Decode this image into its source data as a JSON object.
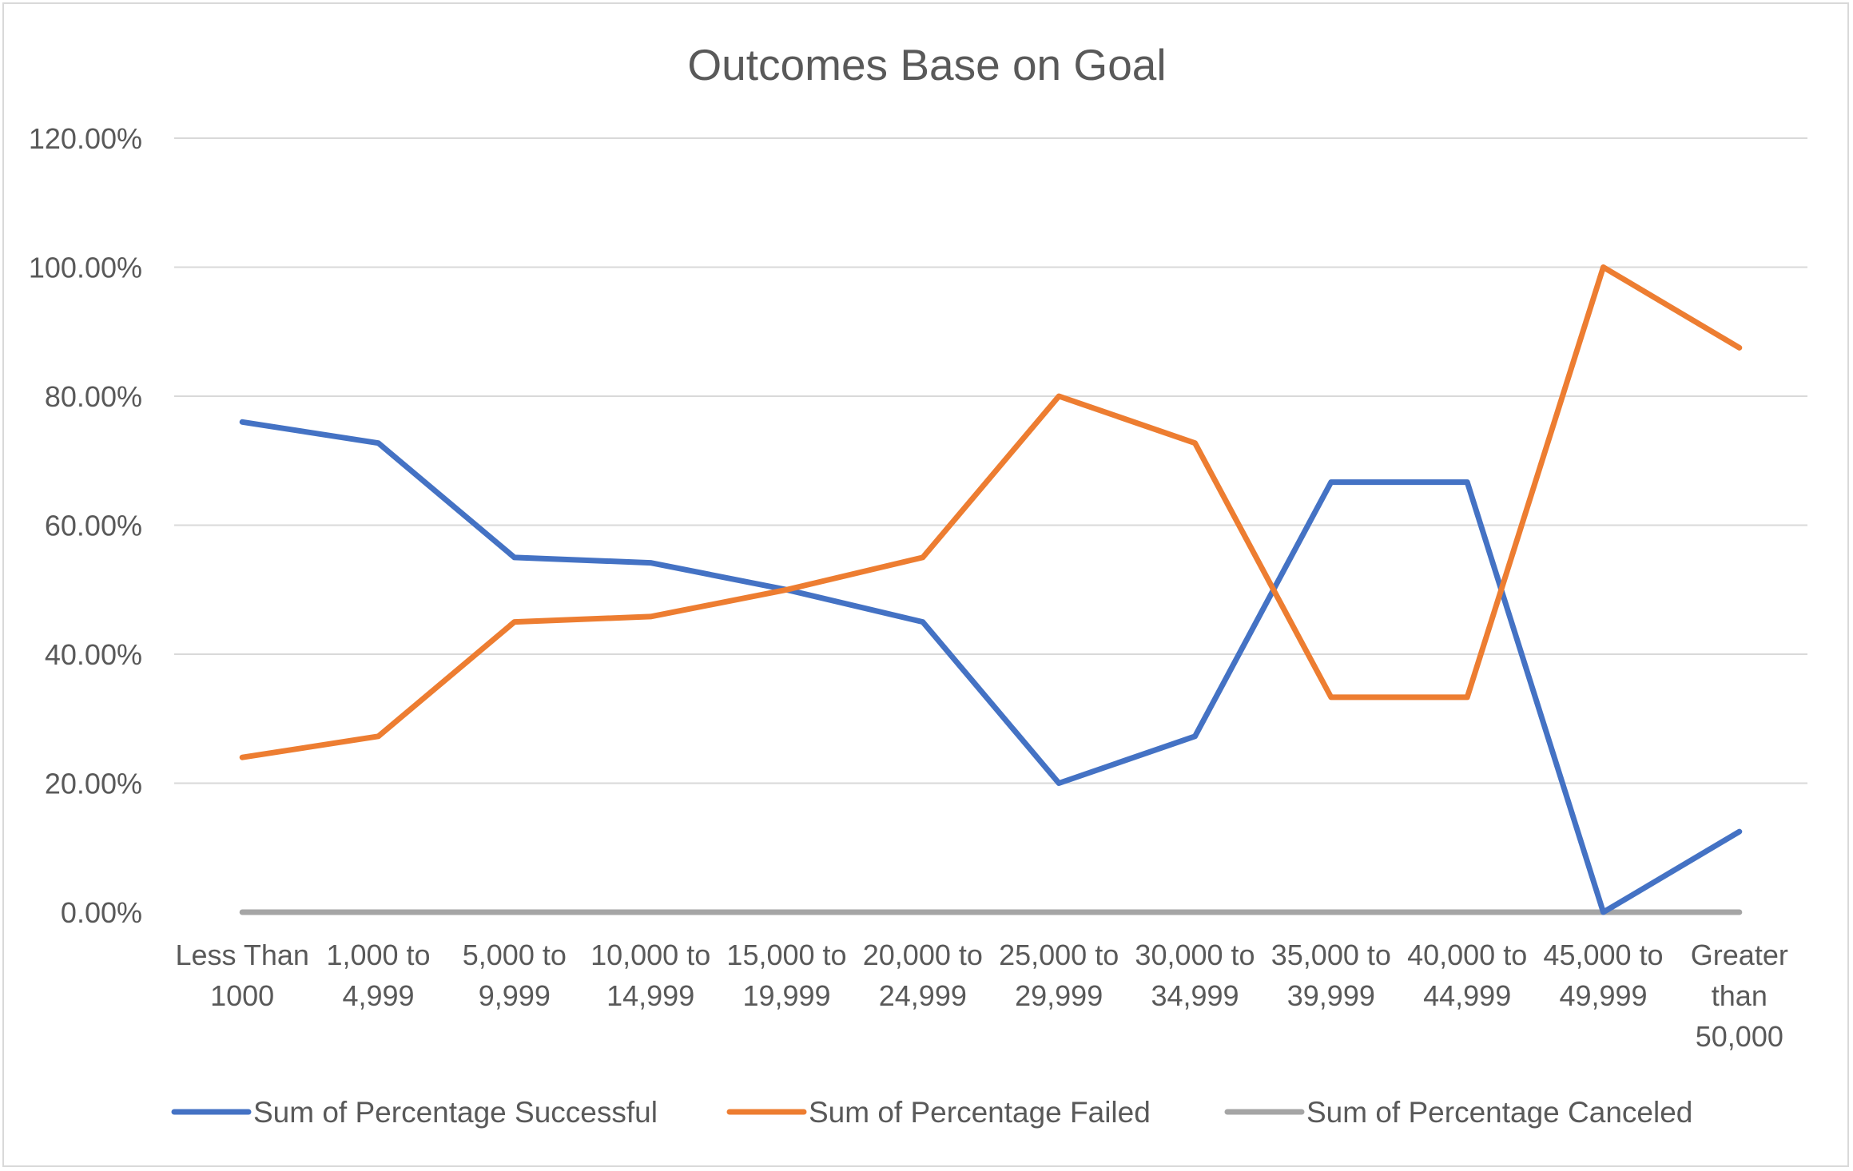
{
  "chart_data": {
    "type": "line",
    "title": "Outcomes Base on Goal",
    "xlabel": "",
    "ylabel": "",
    "ylim": [
      0,
      1.2
    ],
    "y_ticks": [
      "0.00%",
      "20.00%",
      "40.00%",
      "60.00%",
      "80.00%",
      "100.00%",
      "120.00%"
    ],
    "y_tick_values": [
      0,
      0.2,
      0.4,
      0.6,
      0.8,
      1.0,
      1.2
    ],
    "grid": true,
    "legend_position": "bottom",
    "categories": [
      [
        "Less Than",
        "1000"
      ],
      [
        "1,000 to",
        "4,999"
      ],
      [
        "5,000 to",
        "9,999"
      ],
      [
        "10,000 to",
        "14,999"
      ],
      [
        "15,000 to",
        "19,999"
      ],
      [
        "20,000 to",
        "24,999"
      ],
      [
        "25,000 to",
        "29,999"
      ],
      [
        "30,000 to",
        "34,999"
      ],
      [
        "35,000 to",
        "39,999"
      ],
      [
        "40,000 to",
        "44,999"
      ],
      [
        "45,000 to",
        "49,999"
      ],
      [
        "Greater",
        "than",
        "50,000"
      ]
    ],
    "series": [
      {
        "name": "Sum of Percentage Successful",
        "color": "#4472c4",
        "values": [
          0.76,
          0.7273,
          0.55,
          0.5417,
          0.5,
          0.45,
          0.2,
          0.2727,
          0.6667,
          0.6667,
          0.0,
          0.125
        ]
      },
      {
        "name": "Sum of Percentage Failed",
        "color": "#ed7d31",
        "values": [
          0.24,
          0.2727,
          0.45,
          0.4583,
          0.5,
          0.55,
          0.8,
          0.7273,
          0.3333,
          0.3333,
          1.0,
          0.875
        ]
      },
      {
        "name": "Sum of Percentage Canceled",
        "color": "#a5a5a5",
        "values": [
          0,
          0,
          0,
          0,
          0,
          0,
          0,
          0,
          0,
          0,
          0,
          0
        ]
      }
    ]
  }
}
